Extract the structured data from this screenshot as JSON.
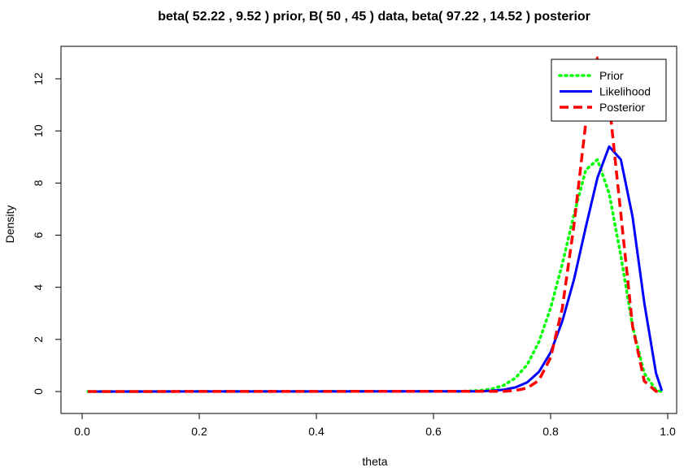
{
  "chart_data": {
    "type": "line",
    "title": "beta( 52.22 , 9.52 ) prior, B( 50 , 45 ) data, beta( 97.22 , 14.52 ) posterior",
    "xlabel": "theta",
    "ylabel": "Density",
    "xlim": [
      0,
      1
    ],
    "ylim": [
      -0.6,
      13
    ],
    "x_ticks": [
      "0.0",
      "0.2",
      "0.4",
      "0.6",
      "0.8",
      "1.0"
    ],
    "y_ticks": [
      "0",
      "2",
      "4",
      "6",
      "8",
      "10",
      "12"
    ],
    "grid": false,
    "legend_position": "top-right",
    "series": [
      {
        "name": "Prior",
        "color": "#00ff00",
        "style": "dotted",
        "x": [
          0.01,
          0.65,
          0.68,
          0.7,
          0.72,
          0.74,
          0.76,
          0.78,
          0.8,
          0.82,
          0.84,
          0.86,
          0.88,
          0.9,
          0.92,
          0.94,
          0.96,
          0.98,
          0.99
        ],
        "y": [
          0,
          0.01,
          0.04,
          0.1,
          0.24,
          0.52,
          1.03,
          1.9,
          3.2,
          4.9,
          6.8,
          8.5,
          8.9,
          7.6,
          5.2,
          2.5,
          0.7,
          0.06,
          0
        ]
      },
      {
        "name": "Likelihood",
        "color": "#0000ff",
        "style": "solid",
        "x": [
          0.01,
          0.68,
          0.7,
          0.72,
          0.74,
          0.76,
          0.78,
          0.8,
          0.82,
          0.84,
          0.86,
          0.88,
          0.9,
          0.92,
          0.94,
          0.96,
          0.98,
          0.99
        ],
        "y": [
          0,
          0.01,
          0.03,
          0.07,
          0.16,
          0.35,
          0.75,
          1.5,
          2.7,
          4.3,
          6.3,
          8.2,
          9.4,
          8.9,
          6.7,
          3.4,
          0.7,
          0.03
        ]
      },
      {
        "name": "Posterior",
        "color": "#ff0000",
        "style": "dashed",
        "x": [
          0.01,
          0.72,
          0.74,
          0.76,
          0.78,
          0.8,
          0.82,
          0.84,
          0.86,
          0.87,
          0.88,
          0.89,
          0.9,
          0.92,
          0.94,
          0.96,
          0.98,
          0.99
        ],
        "y": [
          0,
          0.01,
          0.04,
          0.13,
          0.43,
          1.3,
          3.2,
          6.4,
          10.3,
          11.9,
          12.8,
          12.5,
          11.1,
          6.8,
          2.5,
          0.4,
          0.01,
          0
        ]
      }
    ]
  }
}
